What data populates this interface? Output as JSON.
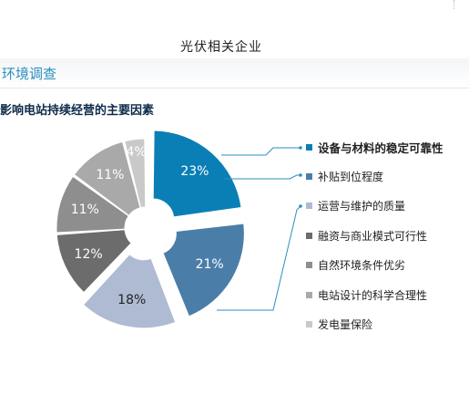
{
  "header": {
    "title": "光伏相关企业",
    "section": "环境调查"
  },
  "chart_data": {
    "type": "pie",
    "subtitle": "影响电站持续经营的主要因素",
    "slices": [
      {
        "label": "设备与材料的稳定可靠性",
        "value": 23,
        "display": "23%",
        "color": "#0a7fb5",
        "exploded": true
      },
      {
        "label": "补贴到位程度",
        "value": 21,
        "display": "21%",
        "color": "#4a7ea8",
        "exploded": true
      },
      {
        "label": "运营与维护的质量",
        "value": 18,
        "display": "18%",
        "color": "#aebbd3",
        "exploded": true
      },
      {
        "label": "融资与商业模式可行性",
        "value": 12,
        "display": "12%",
        "color": "#6c6c6c",
        "exploded": false
      },
      {
        "label": "自然环境条件优劣",
        "value": 11,
        "display": "11%",
        "color": "#8e8e8e",
        "exploded": false
      },
      {
        "label": "电站设计的科学合理性",
        "value": 11,
        "display": "11%",
        "color": "#a9a9a9",
        "exploded": false
      },
      {
        "label": "发电量保险",
        "value": 4,
        "display": "4%",
        "color": "#c9c9c9",
        "exploded": false
      }
    ],
    "legend_position": "right"
  }
}
